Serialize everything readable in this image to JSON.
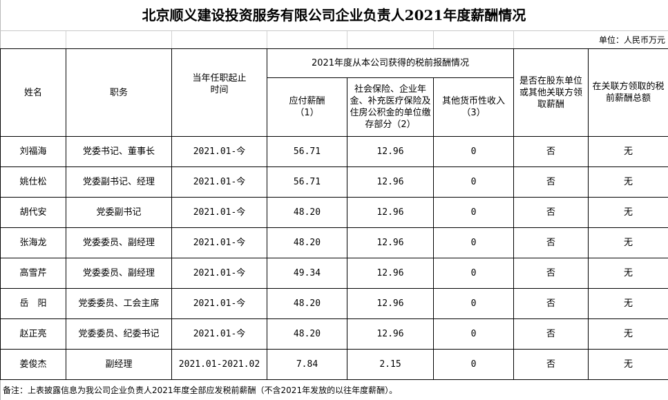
{
  "title": "北京顺义建设投资服务有限公司企业负责人2021年度薪酬情况",
  "unit": "单位：人民币万元",
  "headers": {
    "name": "姓名",
    "position": "职务",
    "term": "当年任职起止时间",
    "group": "2021年度从本公司获得的税前报酬情况",
    "salary": "应付薪酬（1）",
    "insurance": "社会保险、企业年金、补充医疗保险及住房公积金的单位缴存部分（2）",
    "other": "其他货币性收入（3）",
    "related": "是否在股东单位或其他关联方领取薪酬",
    "related_total": "在关联方领取的税前薪酬总额"
  },
  "rows": [
    {
      "name": "刘福海",
      "position": "党委书记、董事长",
      "term": "2021.01-今",
      "salary": "56.71",
      "insurance": "12.96",
      "other": "0",
      "related": "否",
      "related_total": "无"
    },
    {
      "name": "姚仕松",
      "position": "党委副书记、经理",
      "term": "2021.01-今",
      "salary": "56.71",
      "insurance": "12.96",
      "other": "0",
      "related": "否",
      "related_total": "无"
    },
    {
      "name": "胡代安",
      "position": "党委副书记",
      "term": "2021.01-今",
      "salary": "48.20",
      "insurance": "12.96",
      "other": "0",
      "related": "否",
      "related_total": "无"
    },
    {
      "name": "张海龙",
      "position": "党委委员、副经理",
      "term": "2021.01-今",
      "salary": "48.20",
      "insurance": "12.96",
      "other": "0",
      "related": "否",
      "related_total": "无"
    },
    {
      "name": "高雪芹",
      "position": "党委委员、副经理",
      "term": "2021.01-今",
      "salary": "49.34",
      "insurance": "12.96",
      "other": "0",
      "related": "否",
      "related_total": "无"
    },
    {
      "name": "岳　阳",
      "position": "党委委员、工会主席",
      "term": "2021.01-今",
      "salary": "48.20",
      "insurance": "12.96",
      "other": "0",
      "related": "否",
      "related_total": "无"
    },
    {
      "name": "赵正亮",
      "position": "党委委员、纪委书记",
      "term": "2021.01-今",
      "salary": "48.20",
      "insurance": "12.96",
      "other": "0",
      "related": "否",
      "related_total": "无"
    },
    {
      "name": "姜俊杰",
      "position": "副经理",
      "term": "2021.01-2021.02",
      "salary": "7.84",
      "insurance": "2.15",
      "other": "0",
      "related": "否",
      "related_total": "无"
    }
  ],
  "note": "备注：上表披露信息为我公司企业负责人2021年度全部应发税前薪酬（不含2021年发放的以往年度薪酬）。"
}
